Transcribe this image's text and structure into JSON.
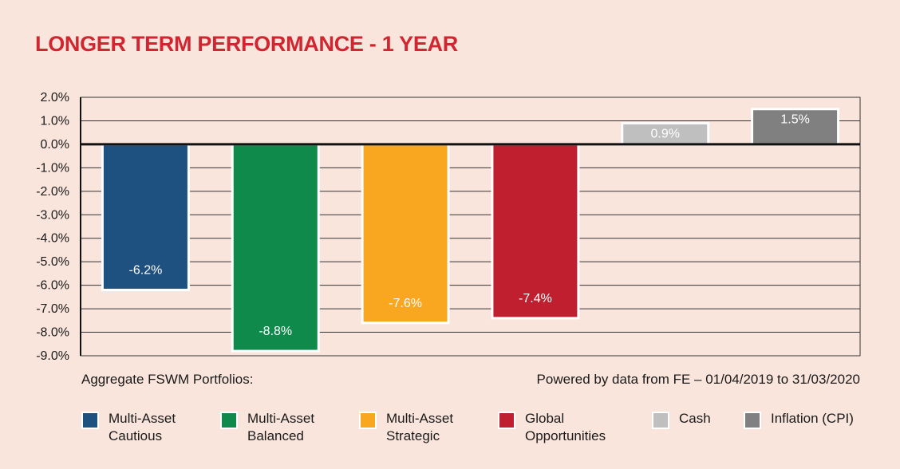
{
  "title": "LONGER TERM PERFORMANCE - 1 YEAR",
  "footnote_left": "Aggregate FSWM Portfolios:",
  "footnote_right": "Powered by data from FE – 01/04/2019 to 31/03/2020",
  "chart_data": {
    "type": "bar",
    "title": "LONGER TERM PERFORMANCE - 1 YEAR",
    "categories": [
      "Multi-Asset Cautious",
      "Multi-Asset Balanced",
      "Multi-Asset Strategic",
      "Global Opportunities",
      "Cash",
      "Inflation (CPI)"
    ],
    "values": [
      -6.2,
      -8.8,
      -7.6,
      -7.4,
      0.9,
      1.5
    ],
    "data_labels": [
      "-6.2%",
      "-8.8%",
      "-7.6%",
      "-7.4%",
      "0.9%",
      "1.5%"
    ],
    "colors": [
      "#1F5180",
      "#0F8A4B",
      "#F9A720",
      "#C01F2F",
      "#BFBFBF",
      "#808080"
    ],
    "ylim": [
      -9,
      2
    ],
    "yticks": [
      2,
      1,
      0,
      -1,
      -2,
      -3,
      -4,
      -5,
      -6,
      -7,
      -8,
      -9
    ],
    "ytick_labels": [
      "2.0%",
      "1.0%",
      "0.0%",
      "-1.0%",
      "-2.0%",
      "-3.0%",
      "-4.0%",
      "-5.0%",
      "-6.0%",
      "-7.0%",
      "-8.0%",
      "-9.0%"
    ],
    "grid": true,
    "xlabel": "",
    "ylabel": "",
    "legend_position": "bottom"
  },
  "legend": [
    {
      "label": "Multi-Asset\nCautious",
      "color": "#1F5180"
    },
    {
      "label": "Multi-Asset\nBalanced",
      "color": "#0F8A4B"
    },
    {
      "label": "Multi-Asset\nStrategic",
      "color": "#F9A720"
    },
    {
      "label": "Global\nOpportunities",
      "color": "#C01F2F"
    },
    {
      "label": "Cash",
      "color": "#BFBFBF"
    },
    {
      "label": "Inflation (CPI)",
      "color": "#808080"
    }
  ]
}
